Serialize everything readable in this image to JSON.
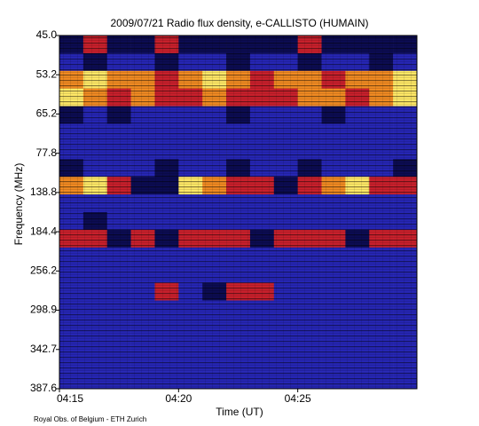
{
  "chart_data": {
    "type": "heatmap",
    "title": "2009/07/21  Radio flux density, e-CALLISTO (HUMAIN)",
    "xlabel": "Time (UT)",
    "ylabel": "Frequency (MHz)",
    "footer": "Royal Obs. of Belgium - ETH Zurich",
    "xlim": [
      255,
      270
    ],
    "xticks": [
      {
        "value": 255,
        "label": "04:15"
      },
      {
        "value": 260,
        "label": "04:20"
      },
      {
        "value": 265,
        "label": "04:25"
      }
    ],
    "yticks": [
      {
        "value": 45,
        "label": "45.0"
      },
      53.2,
      65.2,
      77.8,
      138.8,
      184.4,
      256.2,
      298.9,
      342.7,
      387.6
    ],
    "colors": [
      "#2626b4",
      "#0c0c52",
      "#c8202c",
      "#f08a22",
      "#ffe866"
    ],
    "z": [
      [
        1,
        2,
        1,
        1,
        2,
        1,
        1,
        1,
        1,
        1,
        2,
        1,
        1,
        1,
        1
      ],
      [
        0,
        1,
        0,
        0,
        1,
        0,
        0,
        1,
        0,
        0,
        1,
        0,
        0,
        1,
        0
      ],
      [
        3,
        4,
        3,
        3,
        2,
        3,
        4,
        3,
        2,
        3,
        3,
        2,
        3,
        3,
        4
      ],
      [
        4,
        3,
        2,
        3,
        2,
        2,
        3,
        2,
        2,
        2,
        3,
        3,
        2,
        3,
        4
      ],
      [
        1,
        0,
        1,
        0,
        0,
        0,
        0,
        1,
        0,
        0,
        0,
        1,
        0,
        0,
        0
      ],
      [
        0,
        0,
        0,
        0,
        0,
        0,
        0,
        0,
        0,
        0,
        0,
        0,
        0,
        0,
        0
      ],
      [
        0,
        0,
        0,
        0,
        0,
        0,
        0,
        0,
        0,
        0,
        0,
        0,
        0,
        0,
        0
      ],
      [
        1,
        0,
        0,
        0,
        1,
        0,
        0,
        1,
        0,
        0,
        1,
        0,
        0,
        0,
        1
      ],
      [
        3,
        4,
        2,
        1,
        1,
        4,
        3,
        2,
        2,
        1,
        2,
        3,
        4,
        2,
        2
      ],
      [
        0,
        0,
        0,
        0,
        0,
        0,
        0,
        0,
        0,
        0,
        0,
        0,
        0,
        0,
        0
      ],
      [
        0,
        1,
        0,
        0,
        0,
        0,
        0,
        0,
        0,
        0,
        0,
        0,
        0,
        0,
        0
      ],
      [
        2,
        2,
        1,
        2,
        1,
        2,
        2,
        2,
        1,
        2,
        2,
        2,
        1,
        2,
        2
      ],
      [
        0,
        0,
        0,
        0,
        0,
        0,
        0,
        0,
        0,
        0,
        0,
        0,
        0,
        0,
        0
      ],
      [
        0,
        0,
        0,
        0,
        0,
        0,
        0,
        0,
        0,
        0,
        0,
        0,
        0,
        0,
        0
      ],
      [
        0,
        0,
        0,
        0,
        2,
        0,
        1,
        2,
        2,
        0,
        0,
        0,
        0,
        0,
        0
      ],
      [
        0,
        0,
        0,
        0,
        0,
        0,
        0,
        0,
        0,
        0,
        0,
        0,
        0,
        0,
        0
      ],
      [
        0,
        0,
        0,
        0,
        0,
        0,
        0,
        0,
        0,
        0,
        0,
        0,
        0,
        0,
        0
      ],
      [
        0,
        0,
        0,
        0,
        0,
        0,
        0,
        0,
        0,
        0,
        0,
        0,
        0,
        0,
        0
      ],
      [
        0,
        0,
        0,
        0,
        0,
        0,
        0,
        0,
        0,
        0,
        0,
        0,
        0,
        0,
        0
      ],
      [
        0,
        0,
        0,
        0,
        0,
        0,
        0,
        0,
        0,
        0,
        0,
        0,
        0,
        0,
        0
      ]
    ]
  }
}
